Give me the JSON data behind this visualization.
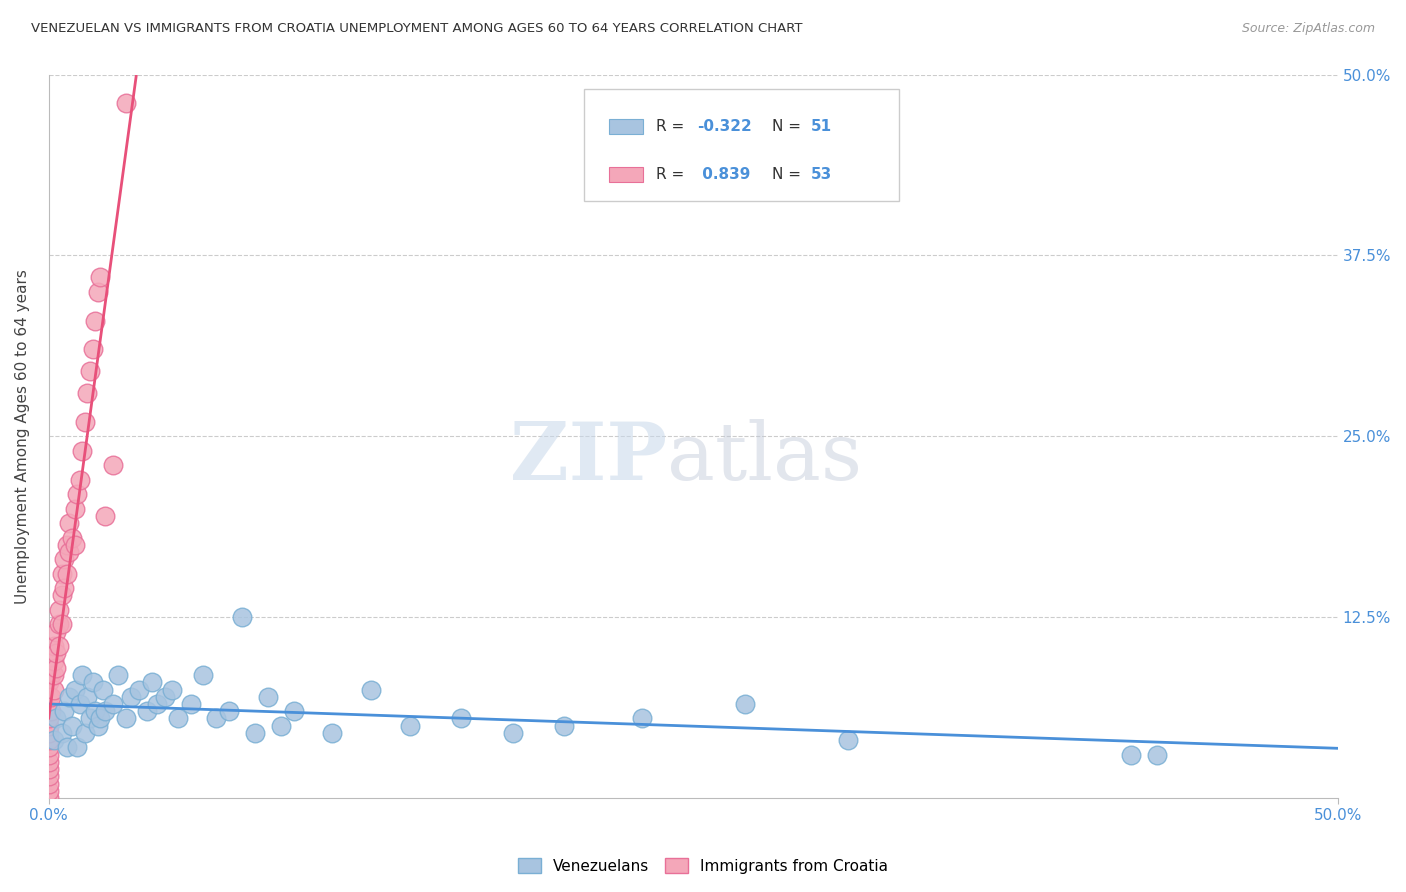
{
  "title": "VENEZUELAN VS IMMIGRANTS FROM CROATIA UNEMPLOYMENT AMONG AGES 60 TO 64 YEARS CORRELATION CHART",
  "source": "Source: ZipAtlas.com",
  "ylabel": "Unemployment Among Ages 60 to 64 years",
  "xlim": [
    0.0,
    0.5
  ],
  "ylim": [
    0.0,
    0.5
  ],
  "xtick_positions": [
    0.0,
    0.5
  ],
  "xticklabels": [
    "0.0%",
    "50.0%"
  ],
  "ytick_positions": [
    0.0,
    0.125,
    0.25,
    0.375,
    0.5
  ],
  "right_yticklabels": [
    "",
    "12.5%",
    "25.0%",
    "37.5%",
    "50.0%"
  ],
  "grid_yticks": [
    0.125,
    0.25,
    0.375,
    0.5
  ],
  "venezuelan_color": "#a8c4e0",
  "croatian_color": "#f4a7b9",
  "venezuelan_edge": "#7aafd4",
  "croatian_edge": "#e87098",
  "line_venezuelan": "#4a90d9",
  "line_croatian": "#e8507a",
  "R_venezuelan": -0.322,
  "N_venezuelan": 51,
  "R_croatian": 0.839,
  "N_croatian": 53,
  "legend_label_1": "Venezuelans",
  "legend_label_2": "Immigrants from Croatia",
  "watermark_zip": "ZIP",
  "watermark_atlas": "atlas",
  "background_color": "#ffffff",
  "venezuelan_x": [
    0.002,
    0.003,
    0.005,
    0.006,
    0.007,
    0.008,
    0.009,
    0.01,
    0.011,
    0.012,
    0.013,
    0.014,
    0.015,
    0.016,
    0.017,
    0.018,
    0.019,
    0.02,
    0.021,
    0.022,
    0.025,
    0.027,
    0.03,
    0.032,
    0.035,
    0.038,
    0.04,
    0.042,
    0.045,
    0.048,
    0.05,
    0.055,
    0.06,
    0.065,
    0.07,
    0.075,
    0.08,
    0.085,
    0.09,
    0.095,
    0.11,
    0.125,
    0.14,
    0.16,
    0.18,
    0.2,
    0.23,
    0.27,
    0.31,
    0.42,
    0.43
  ],
  "venezuelan_y": [
    0.04,
    0.055,
    0.045,
    0.06,
    0.035,
    0.07,
    0.05,
    0.075,
    0.035,
    0.065,
    0.085,
    0.045,
    0.07,
    0.055,
    0.08,
    0.06,
    0.05,
    0.055,
    0.075,
    0.06,
    0.065,
    0.085,
    0.055,
    0.07,
    0.075,
    0.06,
    0.08,
    0.065,
    0.07,
    0.075,
    0.055,
    0.065,
    0.085,
    0.055,
    0.06,
    0.125,
    0.045,
    0.07,
    0.05,
    0.06,
    0.045,
    0.075,
    0.05,
    0.055,
    0.045,
    0.05,
    0.055,
    0.065,
    0.04,
    0.03,
    0.03
  ],
  "croatian_x": [
    0.0,
    0.0,
    0.0,
    0.0,
    0.0,
    0.0,
    0.0,
    0.0,
    0.0,
    0.0,
    0.0,
    0.0,
    0.0,
    0.0,
    0.0,
    0.001,
    0.001,
    0.001,
    0.002,
    0.002,
    0.002,
    0.002,
    0.003,
    0.003,
    0.003,
    0.004,
    0.004,
    0.004,
    0.005,
    0.005,
    0.005,
    0.006,
    0.006,
    0.007,
    0.007,
    0.008,
    0.008,
    0.009,
    0.01,
    0.01,
    0.011,
    0.012,
    0.013,
    0.014,
    0.015,
    0.016,
    0.017,
    0.018,
    0.019,
    0.02,
    0.022,
    0.025,
    0.03
  ],
  "croatian_y": [
    0.0,
    0.005,
    0.01,
    0.015,
    0.02,
    0.025,
    0.03,
    0.035,
    0.04,
    0.045,
    0.05,
    0.055,
    0.06,
    0.07,
    0.08,
    0.06,
    0.07,
    0.085,
    0.075,
    0.085,
    0.095,
    0.105,
    0.09,
    0.1,
    0.115,
    0.105,
    0.12,
    0.13,
    0.12,
    0.14,
    0.155,
    0.145,
    0.165,
    0.155,
    0.175,
    0.17,
    0.19,
    0.18,
    0.175,
    0.2,
    0.21,
    0.22,
    0.24,
    0.26,
    0.28,
    0.295,
    0.31,
    0.33,
    0.35,
    0.36,
    0.195,
    0.23,
    0.48
  ]
}
